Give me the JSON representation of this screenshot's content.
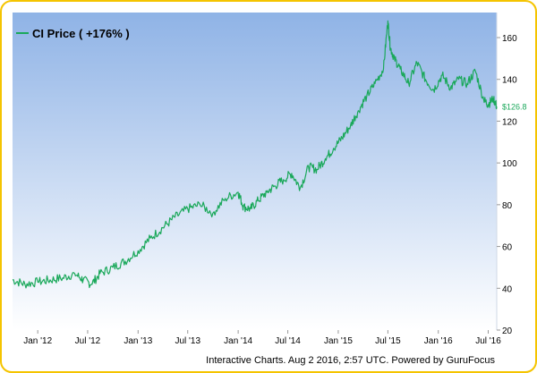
{
  "colors": {
    "frame": "#f5c400",
    "plot_top": "#8fb3e6",
    "plot_bottom": "#ffffff",
    "line": "#1aa85a",
    "label_bg": "#ffffff",
    "label_text": "#1aa85a",
    "text": "#000000"
  },
  "legend": {
    "label": "CI Price ( +176% )"
  },
  "credit": "Interactive Charts. Aug 2 2016, 2:57 UTC. Powered by GuruFocus",
  "last_value_label": "$126.8",
  "chart_data": {
    "type": "line",
    "title": "",
    "xlabel": "",
    "ylabel": "",
    "grid": false,
    "legend_position": "top-left",
    "x_ticks": [
      "Jan '12",
      "Jul '12",
      "Jan '13",
      "Jul '13",
      "Jan '14",
      "Jul '14",
      "Jan '15",
      "Jul '15",
      "Jan '16",
      "Jul '16"
    ],
    "xlim": [
      "2011-10-01",
      "2016-08-01"
    ],
    "y_ticks": [
      20,
      40,
      60,
      80,
      100,
      120,
      140,
      160
    ],
    "ylim": [
      20,
      172
    ],
    "series": [
      {
        "name": "CI Price ( +176% )",
        "x": [
          "2011-10-01",
          "2011-11-15",
          "2012-01-01",
          "2012-02-15",
          "2012-04-01",
          "2012-05-15",
          "2012-06-15",
          "2012-07-15",
          "2012-08-15",
          "2012-10-01",
          "2012-11-15",
          "2013-01-01",
          "2013-02-15",
          "2013-04-01",
          "2013-05-15",
          "2013-07-01",
          "2013-08-15",
          "2013-10-01",
          "2013-11-15",
          "2014-01-01",
          "2014-01-20",
          "2014-02-15",
          "2014-03-15",
          "2014-04-15",
          "2014-05-15",
          "2014-06-15",
          "2014-07-15",
          "2014-08-15",
          "2014-09-15",
          "2014-10-15",
          "2014-11-15",
          "2014-12-15",
          "2015-01-15",
          "2015-02-15",
          "2015-03-15",
          "2015-04-15",
          "2015-05-15",
          "2015-06-15",
          "2015-07-01",
          "2015-07-10",
          "2015-07-25",
          "2015-08-15",
          "2015-09-15",
          "2015-10-15",
          "2015-11-15",
          "2015-12-15",
          "2016-01-15",
          "2016-02-15",
          "2016-03-15",
          "2016-04-15",
          "2016-05-15",
          "2016-06-15",
          "2016-07-01",
          "2016-07-20",
          "2016-08-01"
        ],
        "values": [
          44,
          42,
          43,
          44,
          45,
          47,
          44,
          42,
          47,
          50,
          53,
          58,
          64,
          69,
          74,
          78,
          80,
          76,
          83,
          86,
          79,
          78,
          82,
          86,
          89,
          92,
          95,
          88,
          98,
          97,
          102,
          107,
          112,
          118,
          125,
          132,
          138,
          145,
          168,
          155,
          150,
          145,
          138,
          148,
          140,
          135,
          142,
          136,
          140,
          138,
          144,
          130,
          128,
          131,
          127
        ]
      }
    ]
  }
}
